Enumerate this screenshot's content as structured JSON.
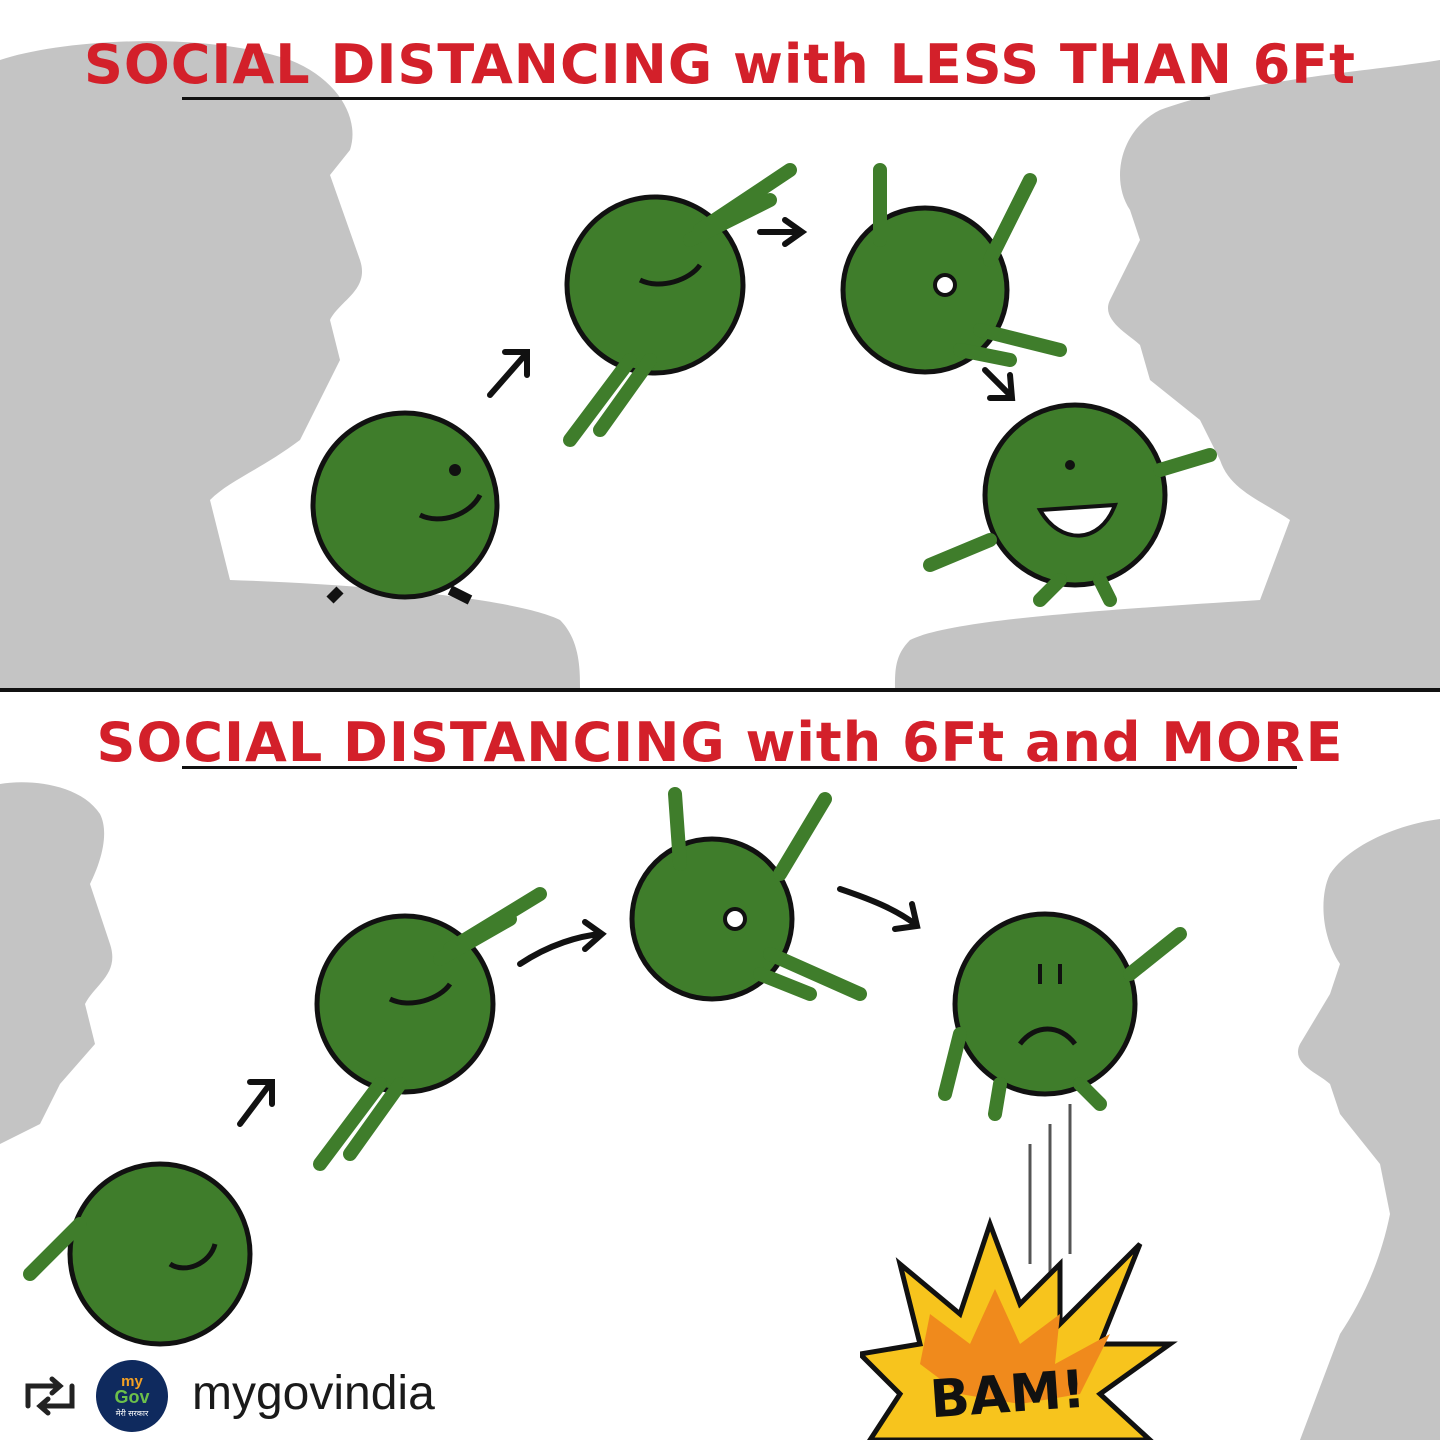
{
  "panels": {
    "top": {
      "title": "SOCIAL DISTANCING with LESS THAN 6Ft"
    },
    "bottom": {
      "title": "SOCIAL DISTANCING with 6Ft and MORE"
    }
  },
  "bam": "BAM!",
  "repost": {
    "handle": "mygovindia",
    "avatar_line1": "my",
    "avatar_line2": "Gov",
    "avatar_line3": "मेरी सरकार",
    "icon": "repost-icon"
  },
  "colors": {
    "title_red": "#d3202a",
    "virus_green": "#3f7d2b",
    "silhouette_gray": "#c4c4c4",
    "bam_yellow": "#f7c41d",
    "bam_orange": "#f08a1c"
  }
}
